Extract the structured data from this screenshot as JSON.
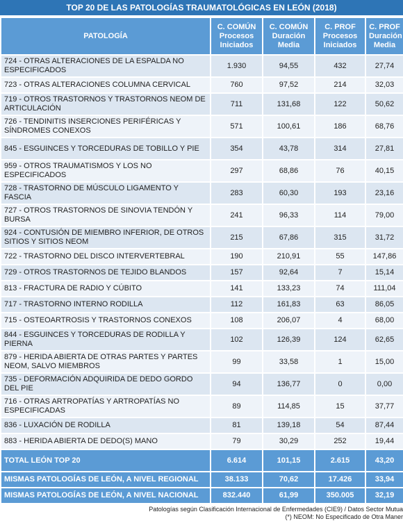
{
  "title": "TOP 20 DE LAS PATOLOGÍAS TRAUMATOLÓGICAS EN LEÓN (2018)",
  "table": {
    "header": [
      [
        "PATOLOGÍA"
      ],
      [
        "C. COMÚN",
        "Procesos",
        "Iniciados"
      ],
      [
        "C. COMÚN",
        "Duración",
        "Media"
      ],
      [
        "C. PROF",
        "Procesos",
        "Iniciados"
      ],
      [
        "C. PROF",
        "Duración",
        "Media"
      ]
    ],
    "rows": [
      [
        "724 - OTRAS ALTERACIONES DE LA ESPALDA NO ESPECIFICADOS",
        "1.930",
        "94,55",
        "432",
        "27,74"
      ],
      [
        "723 - OTRAS ALTERACIONES COLUMNA CERVICAL",
        "760",
        "97,52",
        "214",
        "32,03"
      ],
      [
        "719 - OTROS TRASTORNOS Y TRASTORNOS NEOM DE ARTICULACIÓN",
        "711",
        "131,68",
        "122",
        "50,62"
      ],
      [
        "726 - TENDINITIS INSERCIONES PERIFÉRICAS Y SÍNDROMES CONEXOS",
        "571",
        "100,61",
        "186",
        "68,76"
      ],
      [
        "845 - ESGUINCES Y TORCEDURAS DE TOBILLO Y PIE",
        "354",
        "43,78",
        "314",
        "27,81"
      ],
      [
        "959 - OTROS TRAUMATISMOS Y LOS NO ESPECIFICADOS",
        "297",
        "68,86",
        "76",
        "40,15"
      ],
      [
        "728 - TRASTORNO DE MÚSCULO LIGAMENTO Y FASCIA",
        "283",
        "60,30",
        "193",
        "23,16"
      ],
      [
        "727 - OTROS TRASTORNOS DE SINOVIA TENDÓN Y BURSA",
        "241",
        "96,33",
        "114",
        "79,00"
      ],
      [
        "924 - CONTUSIÓN DE MIEMBRO INFERIOR, DE OTROS SITIOS Y SITIOS NEOM",
        "215",
        "67,86",
        "315",
        "31,72"
      ],
      [
        "722 - TRASTORNO DEL DISCO INTERVERTEBRAL",
        "190",
        "210,91",
        "55",
        "147,86"
      ],
      [
        "729 - OTROS TRASTORNOS DE TEJIDO BLANDOS",
        "157",
        "92,64",
        "7",
        "15,14"
      ],
      [
        "813 - FRACTURA DE RADIO Y CÚBITO",
        "141",
        "133,23",
        "74",
        "111,04"
      ],
      [
        "717 - TRASTORNO INTERNO RODILLA",
        "112",
        "161,83",
        "63",
        "86,05"
      ],
      [
        "715 - OSTEOARTROSIS Y TRASTORNOS CONEXOS",
        "108",
        "206,07",
        "4",
        "68,00"
      ],
      [
        "844 - ESGUINCES Y TORCEDURAS DE RODILLA Y PIERNA",
        "102",
        "126,39",
        "124",
        "62,65"
      ],
      [
        "879 - HERIDA ABIERTA DE OTRAS PARTES Y PARTES NEOM, SALVO MIEMBROS",
        "99",
        "33,58",
        "1",
        "15,00"
      ],
      [
        "735 - DEFORMACIÓN ADQUIRIDA DE DEDO GORDO DEL PIE",
        "94",
        "136,77",
        "0",
        "0,00"
      ],
      [
        "716 - OTRAS ARTROPATÍAS Y ARTROPATÍAS NO ESPECIFICADAS",
        "89",
        "114,85",
        "15",
        "37,77"
      ],
      [
        "836 - LUXACIÓN DE RODILLA",
        "81",
        "139,18",
        "54",
        "87,44"
      ],
      [
        "883 - HERIDA ABIERTA DE DEDO(S) MANO",
        "79",
        "30,29",
        "252",
        "19,44"
      ]
    ],
    "totals": [
      [
        "TOTAL LEÓN TOP 20",
        "6.614",
        "101,15",
        "2.615",
        "43,20"
      ],
      [
        "MISMAS PATOLOGÍAS DE LEÓN, A NIVEL REGIONAL",
        "38.133",
        "70,62",
        "17.426",
        "33,94"
      ],
      [
        "MISMAS PATOLOGÍAS DE LEÓN, A NIVEL NACIONAL",
        "832.440",
        "61,99",
        "350.005",
        "32,19"
      ]
    ]
  },
  "footnotes": [
    "Patologías según Clasificación Internacional de Enfermedades (CIE9) / Datos Sector Mutua",
    "(*) NEOM: No Especificado de Otra Maner"
  ]
}
